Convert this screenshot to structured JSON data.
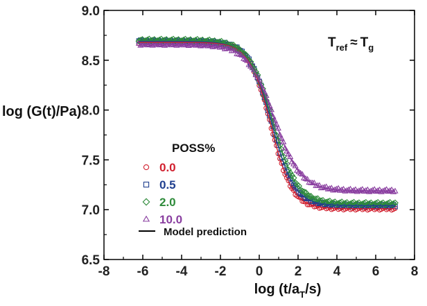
{
  "chart_data": {
    "type": "scatter",
    "xlabel_main": "log (t/a",
    "xlabel_sub": "T",
    "xlabel_tail": "/s)",
    "ylabel": "log (G(t)/Pa)",
    "xlim": [
      -8,
      8
    ],
    "ylim": [
      6.5,
      9.0
    ],
    "x_ticks": [
      -8,
      -6,
      -4,
      -2,
      0,
      2,
      4,
      6,
      8
    ],
    "x_tick_labels": [
      "-8",
      "-6",
      "-4",
      "-2",
      "0",
      "2",
      "4",
      "6",
      "8"
    ],
    "y_ticks": [
      6.5,
      7.0,
      7.5,
      8.0,
      8.5,
      9.0
    ],
    "y_tick_labels": [
      "6.5",
      "7.0",
      "7.5",
      "8.0",
      "8.5",
      "9.0"
    ],
    "annotation": {
      "t": "T",
      "ref": "ref",
      "approx": "≈",
      "g_main": "T",
      "g_sub": "g"
    },
    "legend_title": "POSS%",
    "model_label": "Model prediction",
    "x_range": [
      -6.2,
      7.0
    ],
    "series": [
      {
        "name": "0.0",
        "marker": "circle",
        "color": "#d1202f",
        "model": {
          "g0": 8.68,
          "ginf": 7.01,
          "t0": 0.6,
          "w": 0.55
        }
      },
      {
        "name": "0.5",
        "marker": "square",
        "color": "#1f3f8f",
        "model": {
          "g0": 8.69,
          "ginf": 7.04,
          "t0": 0.65,
          "w": 0.58
        }
      },
      {
        "name": "2.0",
        "marker": "diamond",
        "color": "#2e8b3a",
        "model": {
          "g0": 8.7,
          "ginf": 7.06,
          "t0": 0.7,
          "w": 0.62
        }
      },
      {
        "name": "10.0",
        "marker": "triangle",
        "color": "#8a3fa0",
        "model": {
          "g0": 8.66,
          "ginf": 7.19,
          "t0": 0.75,
          "w": 0.68
        }
      }
    ]
  }
}
